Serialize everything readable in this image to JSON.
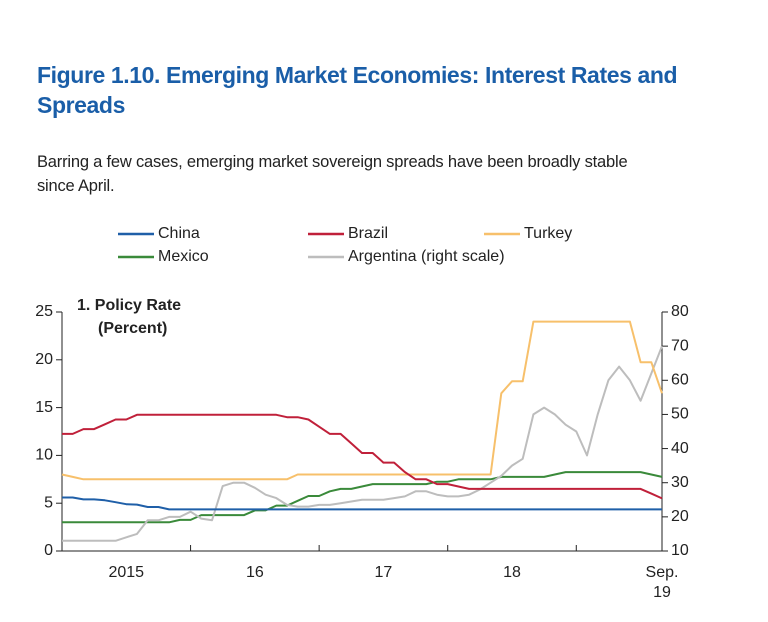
{
  "chart_data": {
    "type": "line",
    "title": "Figure 1.10.  Emerging Market Economies: Interest Rates and Spreads",
    "subtitle": "Barring a few cases, emerging market sovereign spreads have been broadly stable since April.",
    "panel_title": "1. Policy Rate",
    "panel_unit": "(Percent)",
    "x": [
      2015,
      2015.0833,
      2015.1667,
      2015.25,
      2015.3333,
      2015.4167,
      2015.5,
      2015.5833,
      2015.6667,
      2015.75,
      2015.8333,
      2015.9167,
      2016,
      2016.0833,
      2016.1667,
      2016.25,
      2016.3333,
      2016.4167,
      2016.5,
      2016.5833,
      2016.6667,
      2016.75,
      2016.8333,
      2016.9167,
      2017,
      2017.0833,
      2017.1667,
      2017.25,
      2017.3333,
      2017.4167,
      2017.5,
      2017.5833,
      2017.6667,
      2017.75,
      2017.8333,
      2017.9167,
      2018,
      2018.0833,
      2018.1667,
      2018.25,
      2018.3333,
      2018.4167,
      2018.5,
      2018.5833,
      2018.6667,
      2018.75,
      2018.8333,
      2018.9167,
      2019,
      2019.0833,
      2019.1667,
      2019.25,
      2019.3333,
      2019.4167,
      2019.5,
      2019.5833,
      2019.6667
    ],
    "xlim": [
      2015,
      2019.6667
    ],
    "xticks": [
      {
        "value": 2015.5,
        "label": "2015"
      },
      {
        "value": 2016.5,
        "label": "16"
      },
      {
        "value": 2017.5,
        "label": "17"
      },
      {
        "value": 2018.5,
        "label": "18"
      },
      {
        "value": 2019.6667,
        "label": "Sep. 19"
      }
    ],
    "year_boundaries": [
      2016,
      2017,
      2018,
      2019
    ],
    "ylim": [
      0,
      25
    ],
    "yticks": [
      0,
      5,
      10,
      15,
      20,
      25
    ],
    "y2lim": [
      10,
      80
    ],
    "y2ticks": [
      10,
      20,
      30,
      40,
      50,
      60,
      70,
      80
    ],
    "series": [
      {
        "name": "China",
        "color": "#1f5fa8",
        "values": [
          5.6,
          5.6,
          5.4,
          5.4,
          5.3,
          5.1,
          4.9,
          4.85,
          4.6,
          4.6,
          4.35,
          4.35,
          4.35,
          4.35,
          4.35,
          4.35,
          4.35,
          4.35,
          4.35,
          4.35,
          4.35,
          4.35,
          4.35,
          4.35,
          4.35,
          4.35,
          4.35,
          4.35,
          4.35,
          4.35,
          4.35,
          4.35,
          4.35,
          4.35,
          4.35,
          4.35,
          4.35,
          4.35,
          4.35,
          4.35,
          4.35,
          4.35,
          4.35,
          4.35,
          4.35,
          4.35,
          4.35,
          4.35,
          4.35,
          4.35,
          4.35,
          4.35,
          4.35,
          4.35,
          4.35,
          4.35,
          4.35
        ]
      },
      {
        "name": "Brazil",
        "color": "#c0203a",
        "values": [
          12.25,
          12.25,
          12.75,
          12.75,
          13.25,
          13.75,
          13.75,
          14.25,
          14.25,
          14.25,
          14.25,
          14.25,
          14.25,
          14.25,
          14.25,
          14.25,
          14.25,
          14.25,
          14.25,
          14.25,
          14.25,
          14.0,
          14.0,
          13.75,
          13.0,
          12.25,
          12.25,
          11.25,
          10.25,
          10.25,
          9.25,
          9.25,
          8.25,
          7.5,
          7.5,
          7.0,
          7.0,
          6.75,
          6.5,
          6.5,
          6.5,
          6.5,
          6.5,
          6.5,
          6.5,
          6.5,
          6.5,
          6.5,
          6.5,
          6.5,
          6.5,
          6.5,
          6.5,
          6.5,
          6.5,
          6.0,
          5.5
        ]
      },
      {
        "name": "Turkey",
        "color": "#f7c06b",
        "values": [
          8.0,
          7.75,
          7.5,
          7.5,
          7.5,
          7.5,
          7.5,
          7.5,
          7.5,
          7.5,
          7.5,
          7.5,
          7.5,
          7.5,
          7.5,
          7.5,
          7.5,
          7.5,
          7.5,
          7.5,
          7.5,
          7.5,
          8.0,
          8.0,
          8.0,
          8.0,
          8.0,
          8.0,
          8.0,
          8.0,
          8.0,
          8.0,
          8.0,
          8.0,
          8.0,
          8.0,
          8.0,
          8.0,
          8.0,
          8.0,
          8.0,
          16.5,
          17.75,
          17.75,
          24,
          24,
          24,
          24,
          24,
          24,
          24,
          24,
          24,
          24,
          19.75,
          19.75,
          16.5
        ]
      },
      {
        "name": "Mexico",
        "color": "#3a8a3a",
        "values": [
          3.0,
          3.0,
          3.0,
          3.0,
          3.0,
          3.0,
          3.0,
          3.0,
          3.0,
          3.0,
          3.0,
          3.25,
          3.25,
          3.75,
          3.75,
          3.75,
          3.75,
          3.75,
          4.25,
          4.25,
          4.75,
          4.75,
          5.25,
          5.75,
          5.75,
          6.25,
          6.5,
          6.5,
          6.75,
          7.0,
          7.0,
          7.0,
          7.0,
          7.0,
          7.0,
          7.25,
          7.25,
          7.5,
          7.5,
          7.5,
          7.5,
          7.75,
          7.75,
          7.75,
          7.75,
          7.75,
          8.0,
          8.25,
          8.25,
          8.25,
          8.25,
          8.25,
          8.25,
          8.25,
          8.25,
          8.0,
          7.75
        ]
      },
      {
        "name": "Argentina (right scale)",
        "color": "#bdbdbd",
        "axis": "y2",
        "values": [
          13,
          13,
          13,
          13,
          13,
          13,
          14,
          15,
          19,
          19,
          20,
          20,
          21.5,
          19.5,
          19,
          29,
          30,
          30,
          28.5,
          26.5,
          25.5,
          23.5,
          23,
          23,
          23.5,
          23.5,
          24,
          24.5,
          25,
          25,
          25,
          25.5,
          26,
          27.5,
          27.5,
          26.5,
          26,
          26,
          26.5,
          28,
          30,
          32,
          35,
          37,
          50,
          52,
          50,
          47,
          45,
          38,
          50,
          60,
          64,
          60,
          54,
          62,
          70
        ]
      }
    ]
  }
}
